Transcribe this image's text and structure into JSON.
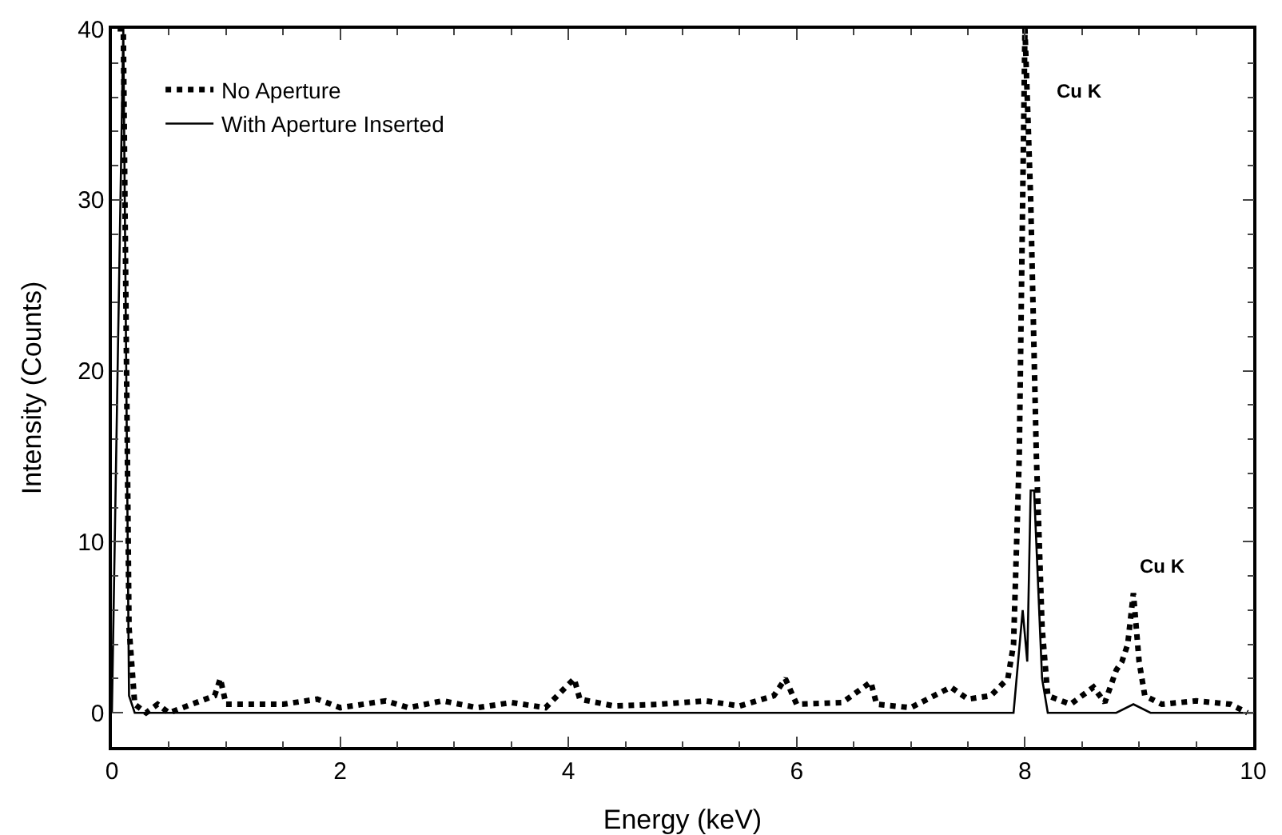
{
  "chart_data": {
    "type": "line",
    "xlabel": "Energy (keV)",
    "ylabel": "Intensity (Counts)",
    "xlim": [
      0,
      10
    ],
    "xticks": [
      0,
      2,
      4,
      6,
      8,
      10
    ],
    "ylim": [
      -2,
      40
    ],
    "yticks": [
      0,
      10,
      20,
      30,
      40
    ],
    "grid": false,
    "legend": "top left",
    "marker": "none",
    "annotations": [
      "Cu K",
      {
        "text": "Cu K",
        "x": 8.95,
        "y": 7
      }
    ],
    "series": [
      {
        "name": "No Aperture",
        "color": "#000000",
        "line_style": "dotted",
        "x": [
          0.05,
          0.1,
          0.15,
          0.2,
          0.3,
          0.4,
          0.5,
          0.7,
          0.9,
          0.95,
          1.0,
          1.2,
          1.5,
          1.8,
          2.0,
          2.4,
          2.6,
          2.9,
          3.2,
          3.5,
          3.8,
          4.05,
          4.1,
          4.4,
          4.8,
          5.2,
          5.5,
          5.8,
          5.9,
          6.0,
          6.4,
          6.65,
          6.7,
          7.0,
          7.35,
          7.5,
          7.7,
          7.85,
          7.9,
          7.95,
          7.98,
          8.0,
          8.05,
          8.1,
          8.15,
          8.2,
          8.4,
          8.6,
          8.7,
          8.8,
          8.85,
          8.9,
          8.95,
          9.0,
          9.05,
          9.2,
          9.5,
          9.8,
          9.95
        ],
        "values": [
          40,
          40,
          5,
          0.5,
          0,
          0.5,
          0,
          0.5,
          1,
          2,
          0.5,
          0.5,
          0.5,
          0.8,
          0.3,
          0.7,
          0.3,
          0.7,
          0.3,
          0.6,
          0.3,
          2,
          0.8,
          0.4,
          0.5,
          0.7,
          0.4,
          1,
          2,
          0.5,
          0.6,
          1.8,
          0.5,
          0.3,
          1.5,
          0.8,
          1,
          2,
          4,
          15,
          30,
          40,
          30,
          15,
          5,
          1,
          0.5,
          1.5,
          0.6,
          2.5,
          3,
          4,
          7,
          3,
          1,
          0.5,
          0.7,
          0.5,
          0
        ]
      },
      {
        "name": "With Aperture Inserted",
        "color": "#000000",
        "line_style": "solid",
        "x": [
          0,
          0.1,
          0.15,
          0.2,
          7.9,
          7.98,
          8.02,
          8.05,
          8.08,
          8.15,
          8.2,
          8.8,
          8.95,
          9.1,
          10
        ],
        "values": [
          0,
          40,
          1,
          0,
          0,
          6,
          3,
          13,
          13,
          2,
          0,
          0,
          0.5,
          0,
          0
        ]
      }
    ]
  }
}
